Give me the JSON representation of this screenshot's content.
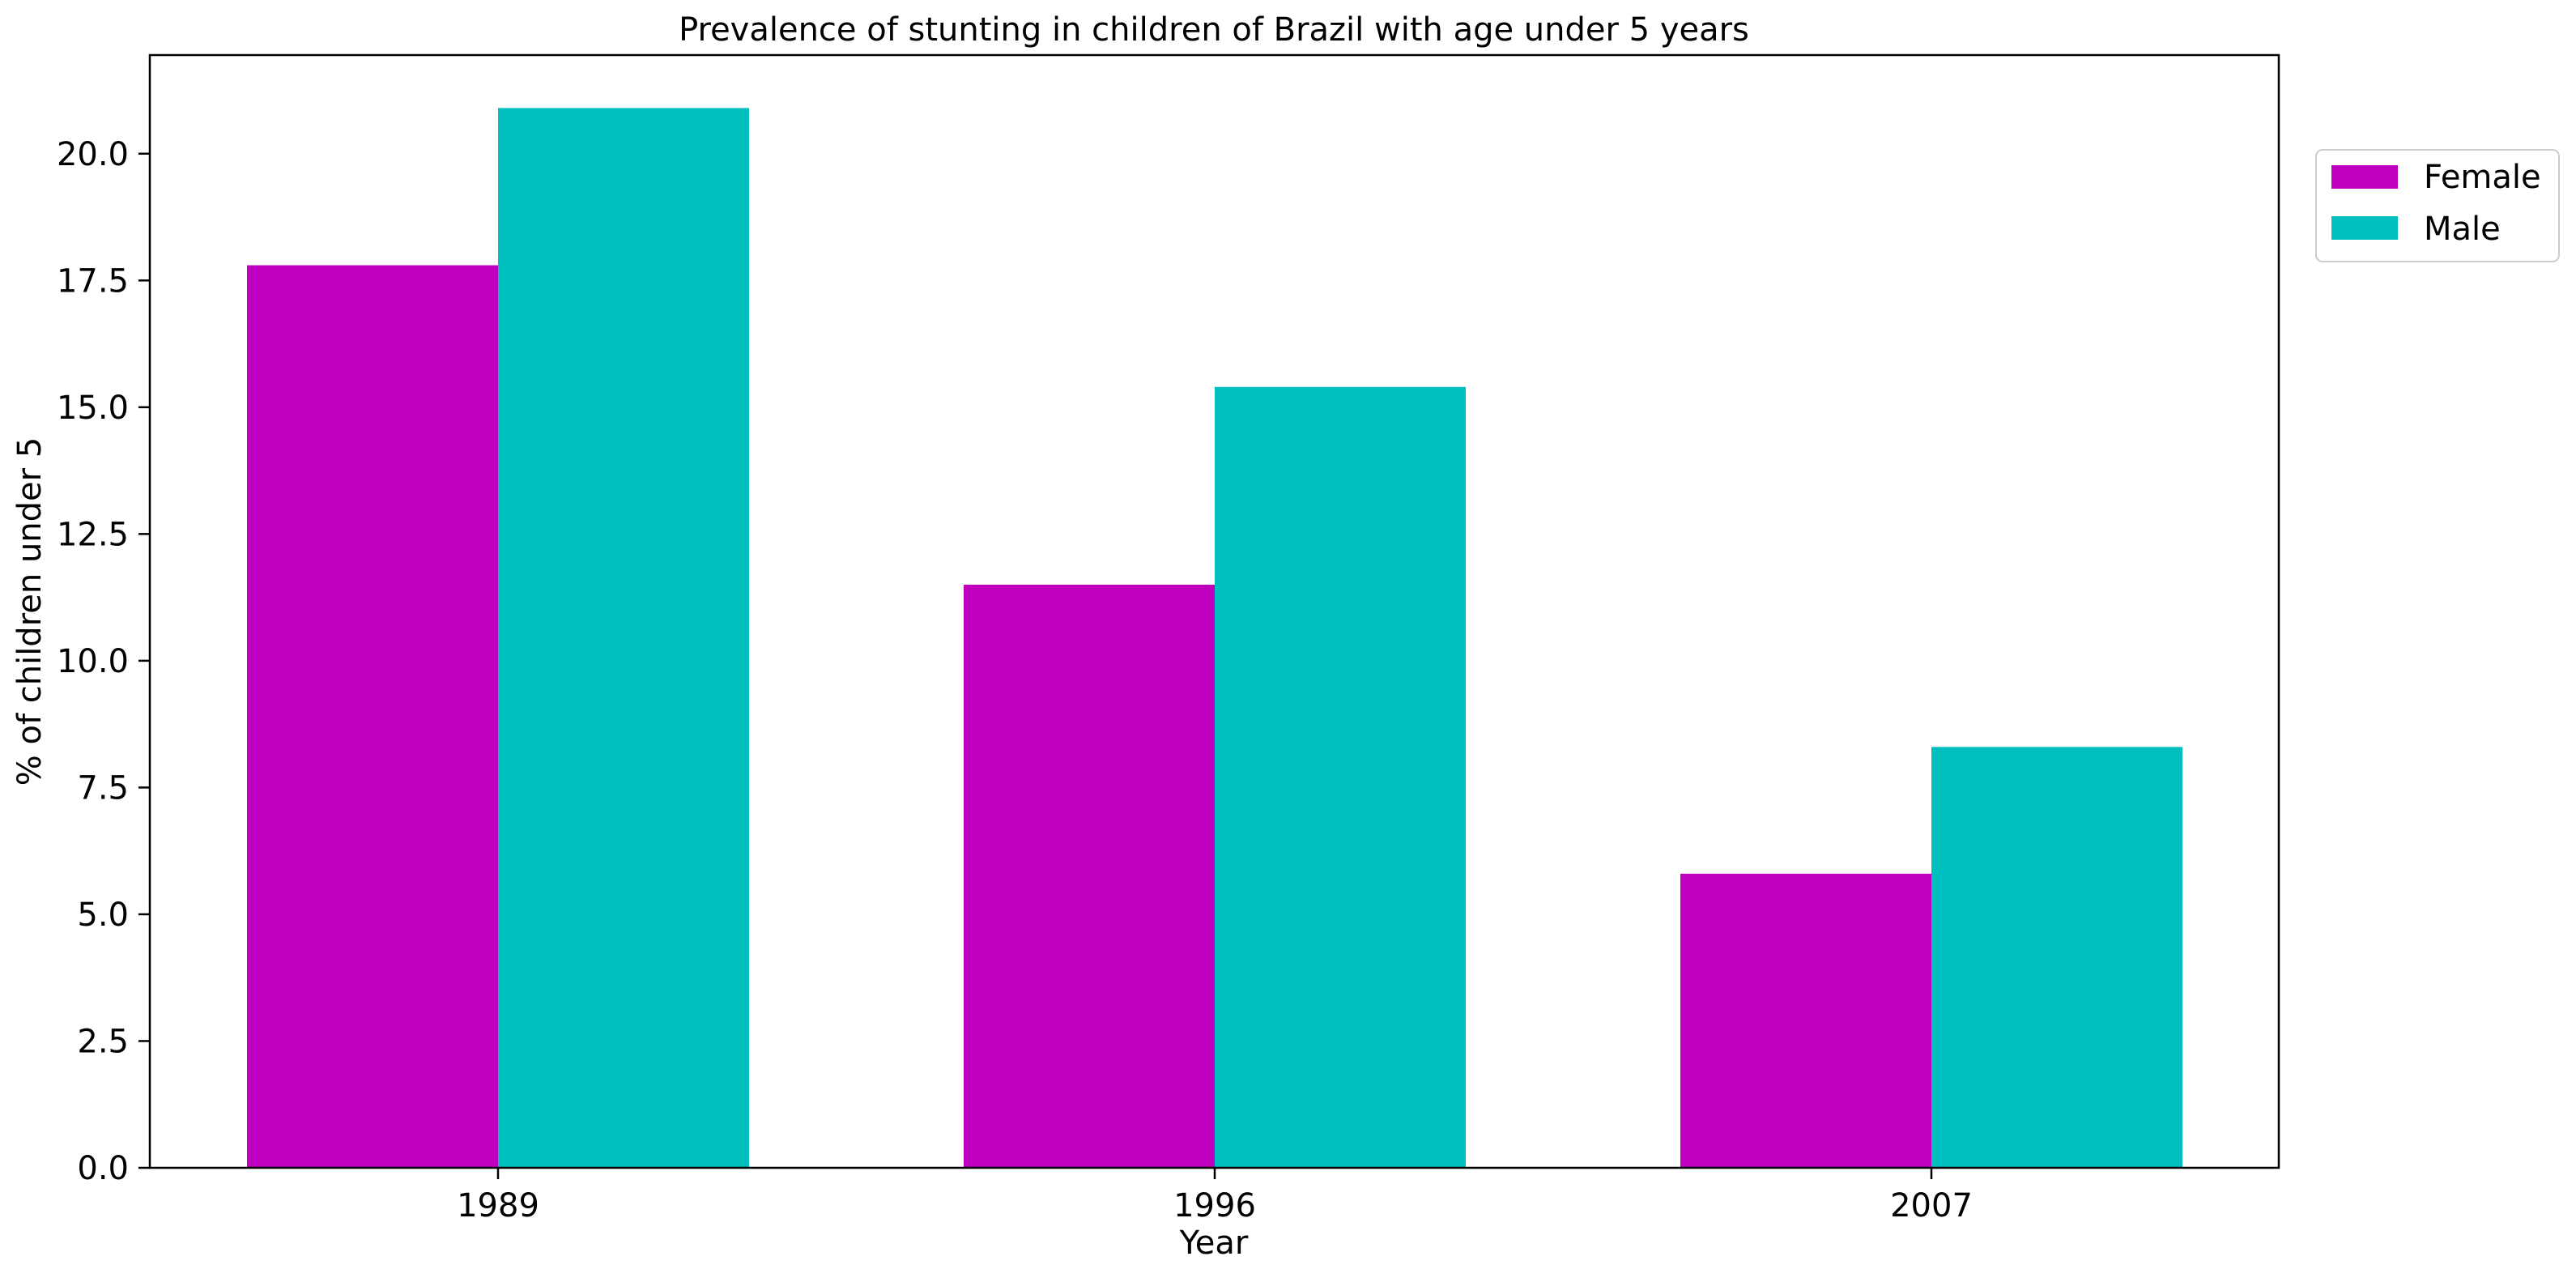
{
  "chart_data": {
    "type": "bar",
    "title": "Prevalence of stunting in children of Brazil with age under 5 years",
    "xlabel": "Year",
    "ylabel": "% of children under 5",
    "categories": [
      "1989",
      "1996",
      "2007"
    ],
    "series": [
      {
        "name": "Female",
        "values": [
          17.8,
          11.5,
          5.8
        ],
        "color": "#bf00bf"
      },
      {
        "name": "Male",
        "values": [
          20.9,
          15.4,
          8.3
        ],
        "color": "#00bfbf"
      }
    ],
    "ylim": [
      0,
      21.945
    ],
    "yticks": [
      "0.0",
      "2.5",
      "5.0",
      "7.5",
      "10.0",
      "12.5",
      "15.0",
      "17.5",
      "20.0"
    ],
    "grid": false,
    "legend_position": "upper-right-outside"
  }
}
